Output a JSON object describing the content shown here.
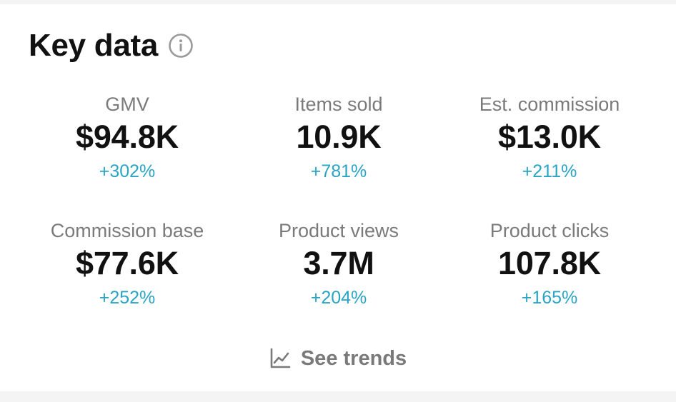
{
  "header": {
    "title": "Key data",
    "info_icon": "info-circle-icon"
  },
  "colors": {
    "change_positive": "#2aa4c4",
    "label": "#7a7a7a",
    "value": "#111111"
  },
  "metrics": [
    {
      "label": "GMV",
      "value": "$94.8K",
      "change": "+302%"
    },
    {
      "label": "Items sold",
      "value": "10.9K",
      "change": "+781%"
    },
    {
      "label": "Est. commission",
      "value": "$13.0K",
      "change": "+211%"
    },
    {
      "label": "Commission base",
      "value": "$77.6K",
      "change": "+252%"
    },
    {
      "label": "Product views",
      "value": "3.7M",
      "change": "+204%"
    },
    {
      "label": "Product clicks",
      "value": "107.8K",
      "change": "+165%"
    }
  ],
  "trends": {
    "label": "See trends",
    "icon": "line-chart-icon"
  }
}
